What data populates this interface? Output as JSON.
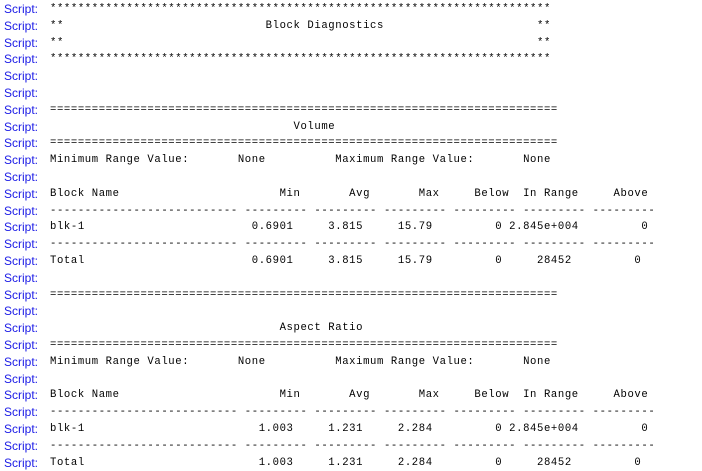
{
  "console": {
    "prefix": "Script:",
    "lines": [
      "************************************************************************",
      "**                             Block Diagnostics                      **",
      "**                                                                    **",
      "************************************************************************",
      "",
      "",
      "=========================================================================",
      "                                   Volume",
      "=========================================================================",
      "Minimum Range Value:       None          Maximum Range Value:       None",
      "",
      "Block Name                       Min       Avg       Max     Below  In Range     Above",
      "--------------------------- --------- --------- --------- --------- --------- ---------",
      "blk-1                        0.6901     3.815     15.79         0 2.845e+004         0",
      "--------------------------- --------- --------- --------- --------- --------- ---------",
      "Total                        0.6901     3.815     15.79         0     28452         0",
      "",
      "=========================================================================",
      "",
      "                                 Aspect Ratio",
      "=========================================================================",
      "Minimum Range Value:       None          Maximum Range Value:       None",
      "",
      "Block Name                       Min       Avg       Max     Below  In Range     Above",
      "--------------------------- --------- --------- --------- --------- --------- ---------",
      "blk-1                         1.003     1.231     2.284         0 2.845e+004         0",
      "--------------------------- --------- --------- --------- --------- --------- ---------",
      "Total                         1.003     1.231     2.284         0     28452         0"
    ]
  }
}
